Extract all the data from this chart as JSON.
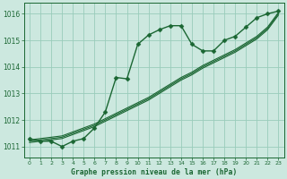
{
  "bg_color": "#cce8df",
  "grid_color": "#99ccbb",
  "line_color": "#1a6632",
  "xlim": [
    -0.5,
    23.5
  ],
  "ylim": [
    1010.6,
    1016.4
  ],
  "yticks": [
    1011,
    1012,
    1013,
    1014,
    1015,
    1016
  ],
  "xticks": [
    0,
    1,
    2,
    3,
    4,
    5,
    6,
    7,
    8,
    9,
    10,
    11,
    12,
    13,
    14,
    15,
    16,
    17,
    18,
    19,
    20,
    21,
    22,
    23
  ],
  "title": "Graphe pression niveau de la mer (hPa)",
  "series_main": {
    "x": [
      0,
      1,
      2,
      3,
      4,
      5,
      6,
      7,
      8,
      9,
      10,
      11,
      12,
      13,
      14,
      15,
      16,
      17,
      18,
      19,
      20,
      21,
      22,
      23
    ],
    "y": [
      1011.3,
      1011.2,
      1011.2,
      1011.0,
      1011.2,
      1011.3,
      1011.7,
      1012.3,
      1013.6,
      1013.55,
      1014.85,
      1015.2,
      1015.4,
      1015.55,
      1015.55,
      1014.85,
      1014.6,
      1014.6,
      1015.0,
      1015.15,
      1015.5,
      1015.85,
      1016.0,
      1016.1
    ],
    "marker": "D",
    "markersize": 2.5,
    "linewidth": 1.0
  },
  "series_lines": [
    {
      "x": [
        0,
        1,
        2,
        3,
        4,
        5,
        6,
        7,
        8,
        9,
        10,
        11,
        12,
        13,
        14,
        15,
        16,
        17,
        18,
        19,
        20,
        21,
        22,
        23
      ],
      "y": [
        1011.25,
        1011.3,
        1011.35,
        1011.4,
        1011.55,
        1011.7,
        1011.85,
        1012.05,
        1012.25,
        1012.45,
        1012.65,
        1012.85,
        1013.1,
        1013.35,
        1013.6,
        1013.8,
        1014.05,
        1014.25,
        1014.45,
        1014.65,
        1014.9,
        1015.15,
        1015.5,
        1016.05
      ],
      "linewidth": 0.8
    },
    {
      "x": [
        0,
        1,
        2,
        3,
        4,
        5,
        6,
        7,
        8,
        9,
        10,
        11,
        12,
        13,
        14,
        15,
        16,
        17,
        18,
        19,
        20,
        21,
        22,
        23
      ],
      "y": [
        1011.2,
        1011.25,
        1011.3,
        1011.35,
        1011.5,
        1011.65,
        1011.8,
        1012.0,
        1012.2,
        1012.4,
        1012.6,
        1012.8,
        1013.05,
        1013.3,
        1013.55,
        1013.75,
        1014.0,
        1014.2,
        1014.4,
        1014.6,
        1014.85,
        1015.1,
        1015.45,
        1016.0
      ],
      "linewidth": 0.8
    },
    {
      "x": [
        0,
        1,
        2,
        3,
        4,
        5,
        6,
        7,
        8,
        9,
        10,
        11,
        12,
        13,
        14,
        15,
        16,
        17,
        18,
        19,
        20,
        21,
        22,
        23
      ],
      "y": [
        1011.15,
        1011.2,
        1011.25,
        1011.3,
        1011.45,
        1011.6,
        1011.75,
        1011.95,
        1012.15,
        1012.35,
        1012.55,
        1012.75,
        1013.0,
        1013.25,
        1013.5,
        1013.7,
        1013.95,
        1014.15,
        1014.35,
        1014.55,
        1014.8,
        1015.05,
        1015.4,
        1015.95
      ],
      "linewidth": 0.8
    }
  ]
}
